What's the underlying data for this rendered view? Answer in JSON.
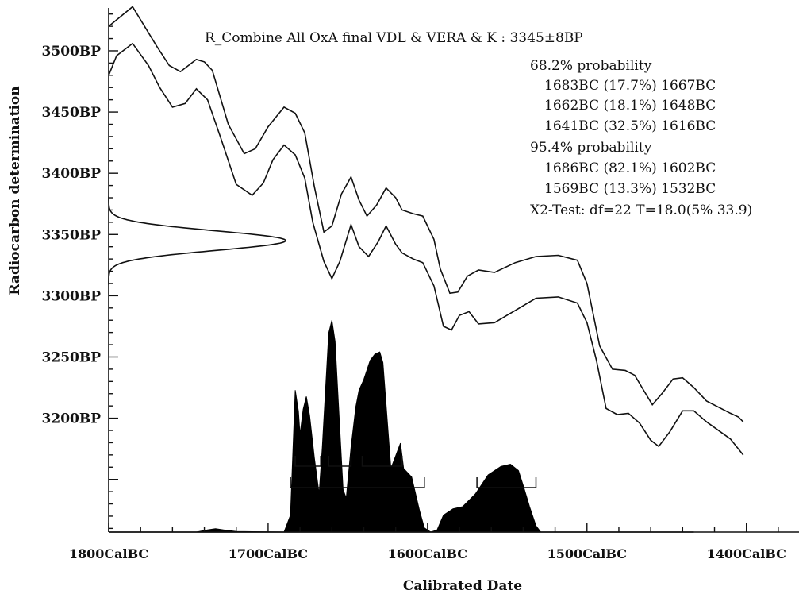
{
  "chart_data": {
    "type": "area",
    "title": "R_Combine All OxA final VDL & VERA & K : 3345±8BP",
    "xlabel": "Calibrated Date",
    "ylabel": "Radiocarbon determination",
    "x_axis": {
      "direction": "BC decreasing left to right",
      "range": [
        1800,
        1367
      ],
      "ticks": [
        1800,
        1700,
        1600,
        1500,
        1400
      ],
      "tick_labels": [
        "1800CalBC",
        "1700CalBC",
        "1600CalBC",
        "1500CalBC",
        "1400CalBC"
      ],
      "minor_step": 20
    },
    "y_axis": {
      "range": [
        3107,
        3535
      ],
      "ticks": [
        3200,
        3250,
        3300,
        3350,
        3400,
        3450,
        3500
      ],
      "tick_labels": [
        "3200BP",
        "3250BP",
        "3300BP",
        "3350BP",
        "3400BP",
        "3450BP",
        "3500BP"
      ],
      "minor_step": 10
    },
    "annotations": [
      "68.2% probability",
      "1683BC (17.7%) 1667BC",
      "1662BC (18.1%) 1648BC",
      "1641BC (32.5%) 1616BC",
      "95.4% probability",
      "1686BC (82.1%) 1602BC",
      "1569BC (13.3%) 1532BC",
      "X2-Test: df=22 T=18.0(5% 33.9)"
    ],
    "calibration_curve_upper": [
      [
        1800,
        3520
      ],
      [
        1785,
        3536
      ],
      [
        1770,
        3504
      ],
      [
        1762,
        3488
      ],
      [
        1755,
        3483
      ],
      [
        1745,
        3493
      ],
      [
        1740,
        3491
      ],
      [
        1735,
        3484
      ],
      [
        1725,
        3440
      ],
      [
        1715,
        3416
      ],
      [
        1708,
        3420
      ],
      [
        1700,
        3438
      ],
      [
        1690,
        3454
      ],
      [
        1683,
        3449
      ],
      [
        1677,
        3433
      ],
      [
        1671,
        3389
      ],
      [
        1665,
        3352
      ],
      [
        1660,
        3357
      ],
      [
        1654,
        3383
      ],
      [
        1648,
        3397
      ],
      [
        1643,
        3378
      ],
      [
        1638,
        3365
      ],
      [
        1632,
        3374
      ],
      [
        1626,
        3388
      ],
      [
        1620,
        3380
      ],
      [
        1616,
        3370
      ],
      [
        1609,
        3367
      ],
      [
        1603,
        3365
      ],
      [
        1596,
        3346
      ],
      [
        1592,
        3322
      ],
      [
        1586,
        3302
      ],
      [
        1581,
        3303
      ],
      [
        1575,
        3316
      ],
      [
        1568,
        3321
      ],
      [
        1558,
        3319
      ],
      [
        1545,
        3327
      ],
      [
        1532,
        3332
      ],
      [
        1518,
        3333
      ],
      [
        1506,
        3329
      ],
      [
        1500,
        3310
      ],
      [
        1492,
        3259
      ],
      [
        1484,
        3240
      ],
      [
        1476,
        3239
      ],
      [
        1470,
        3235
      ],
      [
        1465,
        3224
      ],
      [
        1459,
        3211
      ],
      [
        1453,
        3220
      ],
      [
        1446,
        3232
      ],
      [
        1440,
        3233
      ],
      [
        1433,
        3225
      ],
      [
        1425,
        3214
      ],
      [
        1410,
        3204
      ],
      [
        1405,
        3201
      ],
      [
        1402,
        3197
      ]
    ],
    "calibration_curve_lower": [
      [
        1800,
        3480
      ],
      [
        1795,
        3496
      ],
      [
        1785,
        3506
      ],
      [
        1775,
        3488
      ],
      [
        1768,
        3470
      ],
      [
        1760,
        3454
      ],
      [
        1752,
        3457
      ],
      [
        1745,
        3469
      ],
      [
        1738,
        3460
      ],
      [
        1730,
        3430
      ],
      [
        1720,
        3391
      ],
      [
        1710,
        3382
      ],
      [
        1703,
        3392
      ],
      [
        1697,
        3411
      ],
      [
        1690,
        3423
      ],
      [
        1683,
        3415
      ],
      [
        1677,
        3396
      ],
      [
        1672,
        3360
      ],
      [
        1665,
        3328
      ],
      [
        1660,
        3314
      ],
      [
        1655,
        3328
      ],
      [
        1648,
        3358
      ],
      [
        1643,
        3340
      ],
      [
        1637,
        3332
      ],
      [
        1631,
        3344
      ],
      [
        1626,
        3357
      ],
      [
        1620,
        3342
      ],
      [
        1616,
        3335
      ],
      [
        1609,
        3330
      ],
      [
        1603,
        3327
      ],
      [
        1596,
        3308
      ],
      [
        1590,
        3275
      ],
      [
        1585,
        3272
      ],
      [
        1580,
        3284
      ],
      [
        1574,
        3287
      ],
      [
        1568,
        3277
      ],
      [
        1558,
        3278
      ],
      [
        1545,
        3288
      ],
      [
        1532,
        3298
      ],
      [
        1518,
        3299
      ],
      [
        1506,
        3294
      ],
      [
        1500,
        3278
      ],
      [
        1494,
        3247
      ],
      [
        1488,
        3208
      ],
      [
        1481,
        3203
      ],
      [
        1474,
        3204
      ],
      [
        1467,
        3196
      ],
      [
        1460,
        3182
      ],
      [
        1455,
        3177
      ],
      [
        1448,
        3189
      ],
      [
        1440,
        3206
      ],
      [
        1433,
        3206
      ],
      [
        1425,
        3197
      ],
      [
        1410,
        3183
      ],
      [
        1402,
        3170
      ]
    ],
    "measurement_bp": 3345,
    "measurement_error": 8,
    "measurement_curve_peak_height_bp": 3352,
    "posterior_baseline_bp": 3107,
    "posterior_peak_bp": 3280,
    "posterior_distribution": [
      [
        1758,
        0
      ],
      [
        1745,
        0
      ],
      [
        1738,
        0.01
      ],
      [
        1733,
        0.016
      ],
      [
        1728,
        0.01
      ],
      [
        1720,
        0.003
      ],
      [
        1690,
        0
      ],
      [
        1686,
        0.08
      ],
      [
        1683,
        0.67
      ],
      [
        1681,
        0.57
      ],
      [
        1680,
        0.46
      ],
      [
        1678,
        0.58
      ],
      [
        1676,
        0.64
      ],
      [
        1674,
        0.55
      ],
      [
        1671,
        0.35
      ],
      [
        1668,
        0.18
      ],
      [
        1666,
        0.4
      ],
      [
        1662,
        0.94
      ],
      [
        1660,
        1.0
      ],
      [
        1658,
        0.9
      ],
      [
        1655,
        0.48
      ],
      [
        1653,
        0.2
      ],
      [
        1651,
        0.16
      ],
      [
        1648,
        0.4
      ],
      [
        1645,
        0.59
      ],
      [
        1643,
        0.67
      ],
      [
        1640,
        0.72
      ],
      [
        1636,
        0.81
      ],
      [
        1633,
        0.84
      ],
      [
        1630,
        0.85
      ],
      [
        1628,
        0.8
      ],
      [
        1625,
        0.5
      ],
      [
        1623,
        0.3
      ],
      [
        1620,
        0.36
      ],
      [
        1617,
        0.42
      ],
      [
        1615,
        0.3
      ],
      [
        1610,
        0.26
      ],
      [
        1605,
        0.1
      ],
      [
        1602,
        0.02
      ],
      [
        1598,
        0
      ],
      [
        1594,
        0.01
      ],
      [
        1590,
        0.08
      ],
      [
        1584,
        0.11
      ],
      [
        1578,
        0.12
      ],
      [
        1570,
        0.18
      ],
      [
        1562,
        0.27
      ],
      [
        1554,
        0.31
      ],
      [
        1548,
        0.32
      ],
      [
        1543,
        0.29
      ],
      [
        1540,
        0.22
      ],
      [
        1536,
        0.12
      ],
      [
        1532,
        0.03
      ],
      [
        1529,
        0
      ]
    ],
    "ranges_68": [
      [
        1683,
        1667
      ],
      [
        1662,
        1648
      ],
      [
        1641,
        1616
      ]
    ],
    "ranges_95": [
      [
        1686,
        1602
      ],
      [
        1569,
        1532
      ]
    ]
  }
}
